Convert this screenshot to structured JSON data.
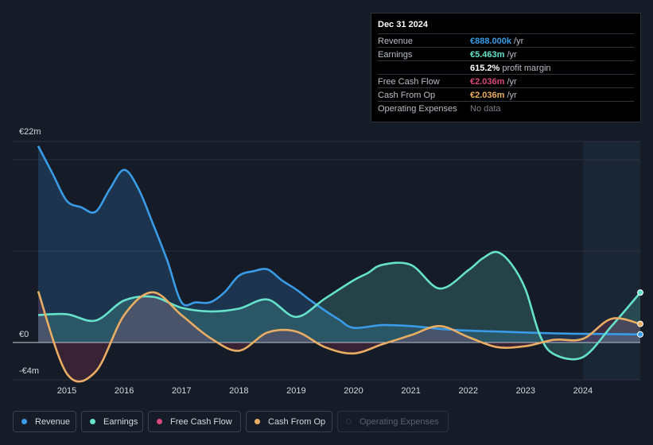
{
  "tooltip": {
    "date": "Dec 31 2024",
    "rows": [
      {
        "label": "Revenue",
        "value": "€888.000k",
        "unit": "/yr",
        "color": "#3a9be6"
      },
      {
        "label": "Earnings",
        "value": "€5.463m",
        "unit": "/yr",
        "color": "#66e2cb"
      },
      {
        "label": "",
        "value": "615.2%",
        "unit": "profit margin",
        "color": "#ffffff"
      },
      {
        "label": "Free Cash Flow",
        "value": "€2.036m",
        "unit": "/yr",
        "color": "#d8487c"
      },
      {
        "label": "Cash From Op",
        "value": "€2.036m",
        "unit": "/yr",
        "color": "#e9ad63"
      },
      {
        "label": "Operating Expenses",
        "value": "No data",
        "unit": "",
        "color": "#7a808a"
      }
    ]
  },
  "legend": [
    {
      "label": "Revenue",
      "color": "#3a9be6"
    },
    {
      "label": "Earnings",
      "color": "#66e2cb"
    },
    {
      "label": "Free Cash Flow",
      "color": "#d8487c"
    },
    {
      "label": "Cash From Op",
      "color": "#e9ad63"
    },
    {
      "label": "Operating Expenses",
      "color": "#2b3553"
    }
  ],
  "chart_data": {
    "type": "area",
    "y_tick_labels": [
      "€22m",
      "€0",
      "-€4m"
    ],
    "ylim": [
      -4,
      22
    ],
    "xlim": [
      2014.5,
      2025.0
    ],
    "x_tick_labels": [
      "2015",
      "2016",
      "2017",
      "2018",
      "2019",
      "2020",
      "2021",
      "2022",
      "2023",
      "2024"
    ],
    "x_ticks": [
      2015,
      2016,
      2017,
      2018,
      2019,
      2020,
      2021,
      2022,
      2023,
      2024
    ],
    "forecast_start": 2024.0,
    "series": [
      {
        "name": "Revenue",
        "color": "#3a9be6",
        "fill": true,
        "x": [
          2014.5,
          2014.75,
          2015.0,
          2015.25,
          2015.5,
          2015.75,
          2016.0,
          2016.25,
          2016.5,
          2016.75,
          2017.0,
          2017.25,
          2017.5,
          2017.75,
          2018.0,
          2018.25,
          2018.5,
          2018.75,
          2019.0,
          2019.25,
          2019.5,
          2019.75,
          2020.0,
          2020.5,
          2021.0,
          2021.5,
          2022.0,
          2022.5,
          2023.0,
          2023.5,
          2024.0,
          2024.5,
          2025.0
        ],
        "y": [
          21.5,
          18.5,
          15.5,
          14.8,
          14.3,
          16.8,
          18.9,
          16.8,
          13.0,
          9.0,
          4.4,
          4.4,
          4.4,
          5.5,
          7.3,
          7.8,
          8.0,
          6.8,
          5.8,
          4.6,
          3.5,
          2.5,
          1.6,
          1.9,
          1.8,
          1.5,
          1.3,
          1.2,
          1.1,
          1.0,
          0.95,
          0.92,
          0.888
        ]
      },
      {
        "name": "Earnings",
        "color": "#66e2cb",
        "fill": true,
        "x": [
          2014.5,
          2015.0,
          2015.5,
          2016.0,
          2016.5,
          2017.0,
          2017.5,
          2018.0,
          2018.5,
          2019.0,
          2019.5,
          2020.0,
          2020.25,
          2020.5,
          2021.0,
          2021.5,
          2022.0,
          2022.25,
          2022.5,
          2022.75,
          2023.0,
          2023.25,
          2023.5,
          2024.0,
          2024.5,
          2025.0
        ],
        "y": [
          3.0,
          3.1,
          2.4,
          4.6,
          5.0,
          3.8,
          3.4,
          3.7,
          4.7,
          2.8,
          4.8,
          6.8,
          7.6,
          8.5,
          8.5,
          5.9,
          7.9,
          9.2,
          9.9,
          8.6,
          5.8,
          0.8,
          -1.3,
          -1.6,
          1.8,
          5.463
        ]
      },
      {
        "name": "Free Cash Flow",
        "color": "#d8487c",
        "fill": true,
        "x": [
          2014.5,
          2015.0,
          2015.5,
          2016.0,
          2016.5,
          2017.0,
          2017.5,
          2018.0,
          2018.5,
          2019.0,
          2019.5,
          2020.0,
          2020.5,
          2021.0,
          2021.5,
          2022.0,
          2022.5,
          2023.0,
          2023.5,
          2024.0,
          2024.5,
          2025.0
        ],
        "y": [
          5.6,
          -3.4,
          -3.2,
          3.0,
          5.5,
          3.0,
          0.5,
          -0.9,
          1.1,
          1.2,
          -0.5,
          -1.2,
          -0.2,
          0.8,
          1.8,
          0.6,
          -0.5,
          -0.4,
          0.3,
          0.4,
          2.6,
          2.036
        ]
      },
      {
        "name": "Cash From Op",
        "color": "#e9ad63",
        "fill": false,
        "x": [
          2014.5,
          2015.0,
          2015.5,
          2016.0,
          2016.5,
          2017.0,
          2017.5,
          2018.0,
          2018.5,
          2019.0,
          2019.5,
          2020.0,
          2020.5,
          2021.0,
          2021.5,
          2022.0,
          2022.5,
          2023.0,
          2023.5,
          2024.0,
          2024.5,
          2025.0
        ],
        "y": [
          5.6,
          -3.4,
          -3.2,
          3.0,
          5.5,
          3.0,
          0.5,
          -0.9,
          1.1,
          1.2,
          -0.5,
          -1.2,
          -0.2,
          0.8,
          1.8,
          0.6,
          -0.5,
          -0.4,
          0.3,
          0.4,
          2.6,
          2.036
        ]
      }
    ]
  }
}
